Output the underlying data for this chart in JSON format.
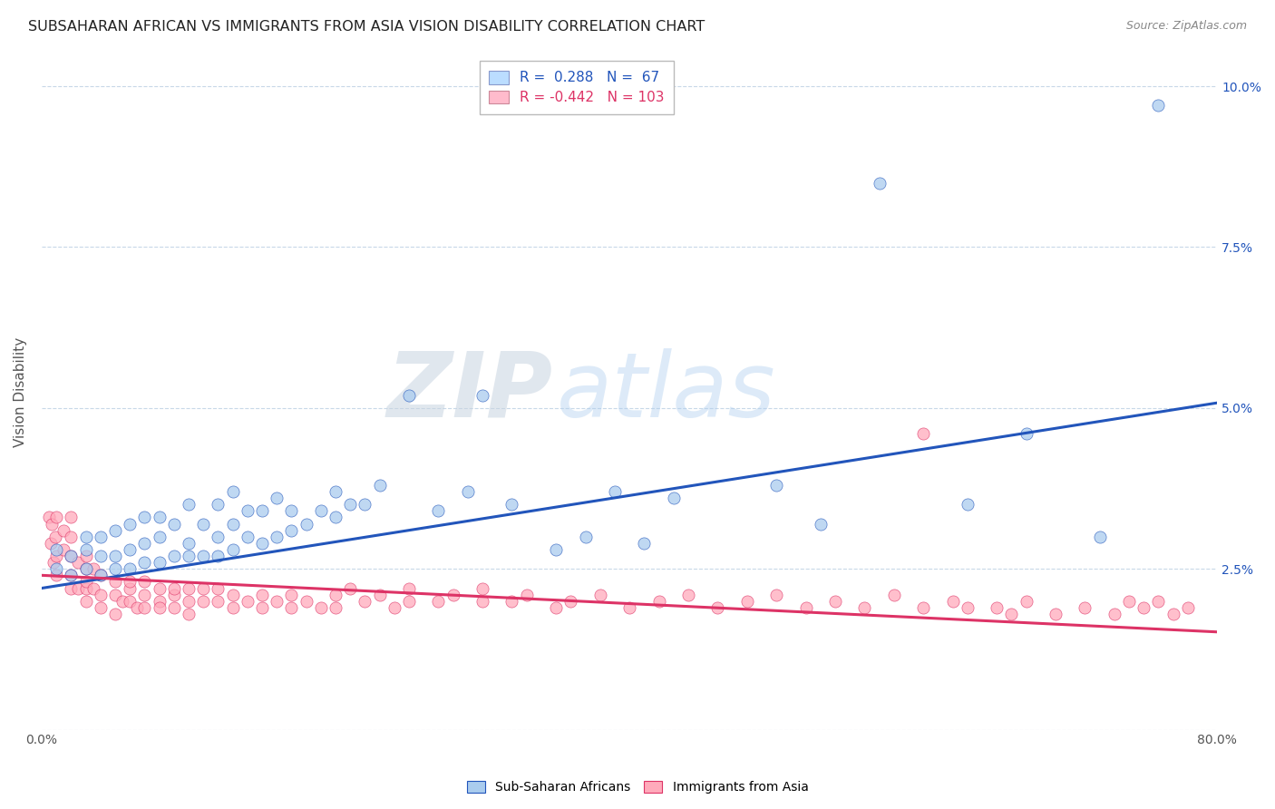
{
  "title": "SUBSAHARAN AFRICAN VS IMMIGRANTS FROM ASIA VISION DISABILITY CORRELATION CHART",
  "source": "Source: ZipAtlas.com",
  "ylabel": "Vision Disability",
  "xlim": [
    0.0,
    0.8
  ],
  "ylim": [
    0.0,
    0.105
  ],
  "yticks": [
    0.0,
    0.025,
    0.05,
    0.075,
    0.1
  ],
  "yticklabels_right": [
    "",
    "2.5%",
    "5.0%",
    "7.5%",
    "10.0%"
  ],
  "legend_labels": [
    "Sub-Saharan Africans",
    "Immigrants from Asia"
  ],
  "blue_line_color": "#2255bb",
  "pink_line_color": "#dd3366",
  "blue_scatter_color": "#aaccee",
  "pink_scatter_color": "#ffaabb",
  "legend_blue_fill": "#bbddff",
  "legend_pink_fill": "#ffbbcc",
  "R_blue": 0.288,
  "N_blue": 67,
  "R_pink": -0.442,
  "N_pink": 103,
  "blue_intercept": 0.022,
  "blue_slope": 0.036,
  "pink_intercept": 0.024,
  "pink_slope": -0.011,
  "watermark_zip": "ZIP",
  "watermark_atlas": "atlas",
  "background_color": "#ffffff",
  "grid_color": "#c8d8e8",
  "blue_points_x": [
    0.01,
    0.01,
    0.02,
    0.02,
    0.03,
    0.03,
    0.03,
    0.04,
    0.04,
    0.04,
    0.05,
    0.05,
    0.05,
    0.06,
    0.06,
    0.06,
    0.07,
    0.07,
    0.07,
    0.08,
    0.08,
    0.08,
    0.09,
    0.09,
    0.1,
    0.1,
    0.1,
    0.11,
    0.11,
    0.12,
    0.12,
    0.12,
    0.13,
    0.13,
    0.13,
    0.14,
    0.14,
    0.15,
    0.15,
    0.16,
    0.16,
    0.17,
    0.17,
    0.18,
    0.19,
    0.2,
    0.2,
    0.21,
    0.22,
    0.23,
    0.25,
    0.27,
    0.29,
    0.3,
    0.32,
    0.35,
    0.37,
    0.39,
    0.41,
    0.43,
    0.5,
    0.53,
    0.57,
    0.63,
    0.67,
    0.72,
    0.76
  ],
  "blue_points_y": [
    0.025,
    0.028,
    0.027,
    0.024,
    0.025,
    0.028,
    0.03,
    0.024,
    0.027,
    0.03,
    0.025,
    0.027,
    0.031,
    0.025,
    0.028,
    0.032,
    0.026,
    0.029,
    0.033,
    0.026,
    0.03,
    0.033,
    0.027,
    0.032,
    0.027,
    0.029,
    0.035,
    0.027,
    0.032,
    0.027,
    0.03,
    0.035,
    0.028,
    0.032,
    0.037,
    0.03,
    0.034,
    0.029,
    0.034,
    0.03,
    0.036,
    0.031,
    0.034,
    0.032,
    0.034,
    0.033,
    0.037,
    0.035,
    0.035,
    0.038,
    0.052,
    0.034,
    0.037,
    0.052,
    0.035,
    0.028,
    0.03,
    0.037,
    0.029,
    0.036,
    0.038,
    0.032,
    0.085,
    0.035,
    0.046,
    0.03,
    0.097
  ],
  "pink_points_x": [
    0.005,
    0.006,
    0.007,
    0.008,
    0.009,
    0.01,
    0.01,
    0.01,
    0.015,
    0.015,
    0.02,
    0.02,
    0.02,
    0.02,
    0.02,
    0.025,
    0.025,
    0.03,
    0.03,
    0.03,
    0.03,
    0.03,
    0.035,
    0.035,
    0.04,
    0.04,
    0.04,
    0.05,
    0.05,
    0.05,
    0.055,
    0.06,
    0.06,
    0.06,
    0.065,
    0.07,
    0.07,
    0.07,
    0.08,
    0.08,
    0.08,
    0.09,
    0.09,
    0.09,
    0.1,
    0.1,
    0.1,
    0.11,
    0.11,
    0.12,
    0.12,
    0.13,
    0.13,
    0.14,
    0.15,
    0.15,
    0.16,
    0.17,
    0.17,
    0.18,
    0.19,
    0.2,
    0.2,
    0.21,
    0.22,
    0.23,
    0.24,
    0.25,
    0.25,
    0.27,
    0.28,
    0.3,
    0.3,
    0.32,
    0.33,
    0.35,
    0.36,
    0.38,
    0.4,
    0.42,
    0.44,
    0.46,
    0.48,
    0.5,
    0.52,
    0.54,
    0.56,
    0.58,
    0.6,
    0.62,
    0.65,
    0.67,
    0.69,
    0.71,
    0.73,
    0.74,
    0.75,
    0.76,
    0.77,
    0.78,
    0.6,
    0.63,
    0.66
  ],
  "pink_points_y": [
    0.033,
    0.029,
    0.032,
    0.026,
    0.03,
    0.024,
    0.027,
    0.033,
    0.028,
    0.031,
    0.027,
    0.03,
    0.024,
    0.022,
    0.033,
    0.026,
    0.022,
    0.022,
    0.025,
    0.02,
    0.023,
    0.027,
    0.022,
    0.025,
    0.021,
    0.024,
    0.019,
    0.021,
    0.023,
    0.018,
    0.02,
    0.022,
    0.02,
    0.023,
    0.019,
    0.021,
    0.019,
    0.023,
    0.02,
    0.022,
    0.019,
    0.021,
    0.019,
    0.022,
    0.02,
    0.022,
    0.018,
    0.02,
    0.022,
    0.02,
    0.022,
    0.019,
    0.021,
    0.02,
    0.021,
    0.019,
    0.02,
    0.021,
    0.019,
    0.02,
    0.019,
    0.021,
    0.019,
    0.022,
    0.02,
    0.021,
    0.019,
    0.02,
    0.022,
    0.02,
    0.021,
    0.02,
    0.022,
    0.02,
    0.021,
    0.019,
    0.02,
    0.021,
    0.019,
    0.02,
    0.021,
    0.019,
    0.02,
    0.021,
    0.019,
    0.02,
    0.019,
    0.021,
    0.019,
    0.02,
    0.019,
    0.02,
    0.018,
    0.019,
    0.018,
    0.02,
    0.019,
    0.02,
    0.018,
    0.019,
    0.046,
    0.019,
    0.018
  ]
}
